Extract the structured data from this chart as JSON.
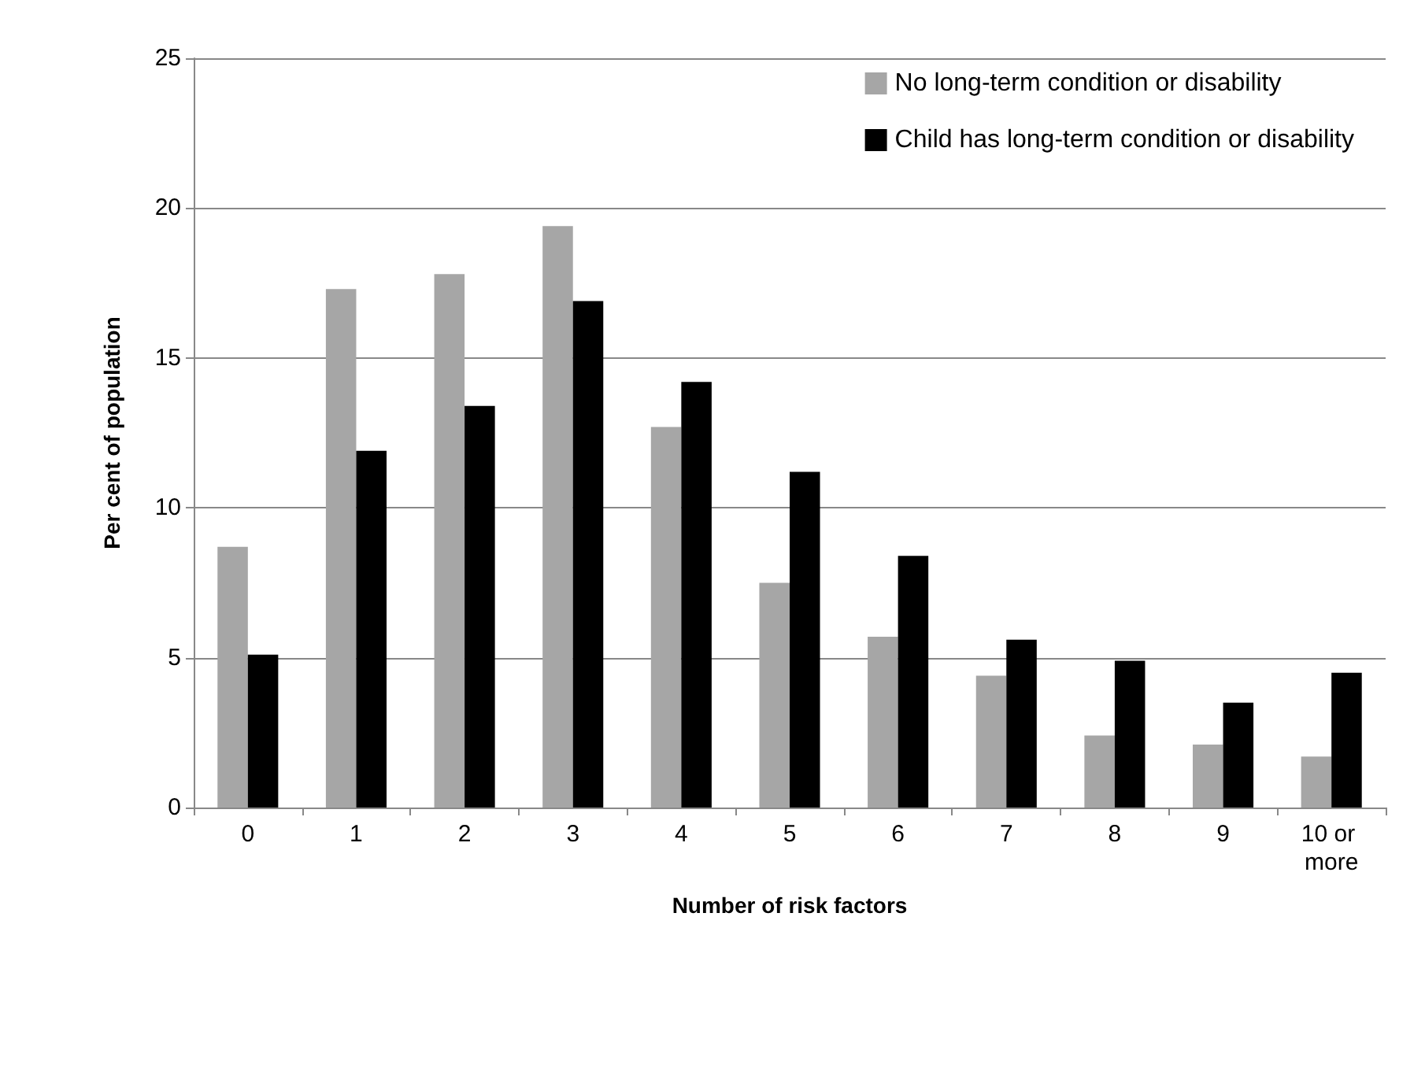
{
  "chart_data": {
    "type": "bar",
    "xlabel": "Number of risk factors",
    "ylabel": "Per cent of population",
    "categories": [
      "0",
      "1",
      "2",
      "3",
      "4",
      "5",
      "6",
      "7",
      "8",
      "9",
      "10 or more"
    ],
    "series": [
      {
        "name": "No long-term condition or disability",
        "color": "#a6a6a6",
        "values": [
          8.7,
          17.3,
          17.8,
          19.4,
          12.7,
          7.5,
          5.7,
          4.4,
          2.4,
          2.1,
          1.7
        ]
      },
      {
        "name": "Child has long-term condition or disability",
        "color": "#000000",
        "values": [
          5.1,
          11.9,
          13.4,
          16.9,
          14.2,
          11.2,
          8.4,
          5.6,
          4.9,
          3.5,
          4.5
        ]
      }
    ],
    "ylim": [
      0,
      25
    ],
    "yticks": [
      0,
      5,
      10,
      15,
      20,
      25
    ],
    "grid": "y",
    "legend": "top right"
  }
}
